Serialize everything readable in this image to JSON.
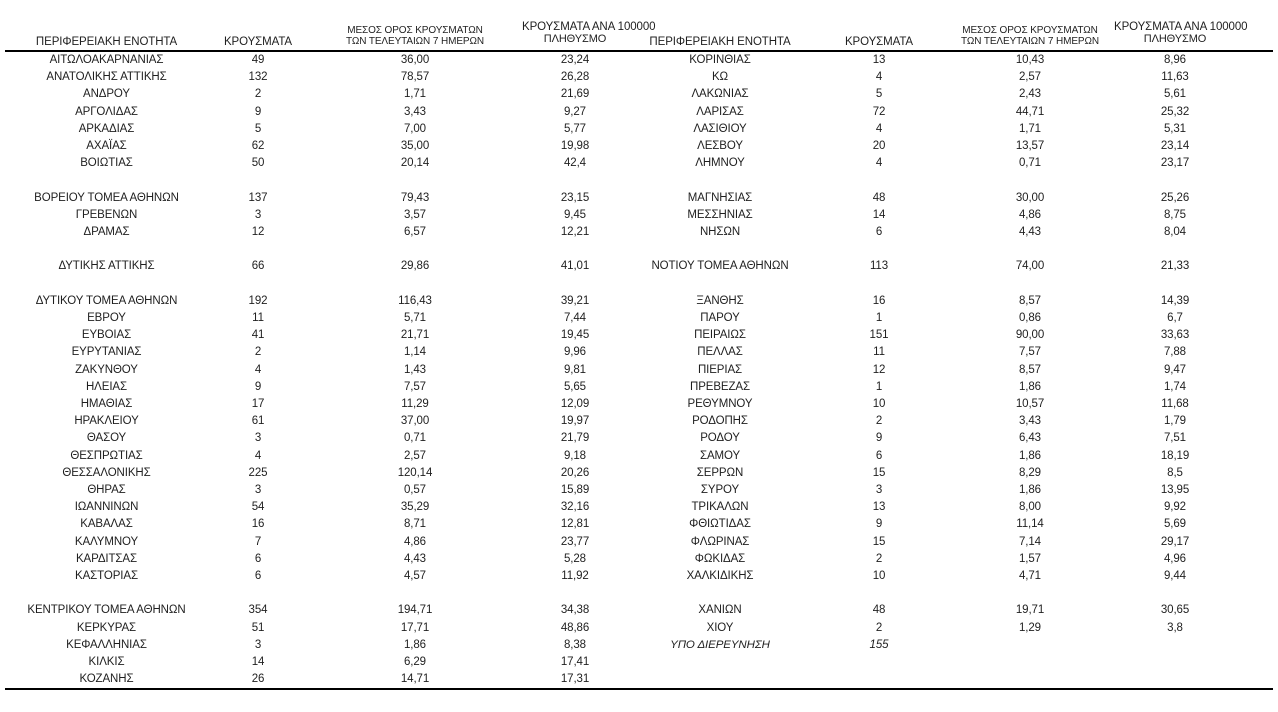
{
  "page": {
    "background": "#ffffff",
    "text_color": "#1f1f1f",
    "line_color": "#000000"
  },
  "headers": {
    "region": "ΠΕΡΙΦΕΡΕΙΑΚΗ ΕΝΟΤΗΤΑ",
    "cases": "ΚΡΟΥΣΜΑΤΑ",
    "avg7": [
      "ΜΕΣΟΣ ΟΡΟΣ ΚΡΟΥΣΜΑΤΩΝ",
      "ΤΩΝ ΤΕΛΕΥΤΑΙΩΝ 7 ΗΜΕΡΩΝ"
    ],
    "per100k": [
      "ΚΡΟΥΣΜΑΤΑ ΑΝΑ 100000",
      "ΠΛΗΘΥΣΜΟ"
    ]
  },
  "left_rows": [
    {
      "region": "ΑΙΤΩΛΟΑΚΑΡΝΑΝΙΑΣ",
      "cases": "49",
      "avg7": "36,00",
      "per100k": "23,24"
    },
    {
      "region": "ΑΝΑΤΟΛΙΚΗΣ ΑΤΤΙΚΗΣ",
      "cases": "132",
      "avg7": "78,57",
      "per100k": "26,28"
    },
    {
      "region": "ΑΝΔΡΟΥ",
      "cases": "2",
      "avg7": "1,71",
      "per100k": "21,69"
    },
    {
      "region": "ΑΡΓΟΛΙΔΑΣ",
      "cases": "9",
      "avg7": "3,43",
      "per100k": "9,27"
    },
    {
      "region": "ΑΡΚΑΔΙΑΣ",
      "cases": "5",
      "avg7": "7,00",
      "per100k": "5,77"
    },
    {
      "region": "ΑΧΑΪΑΣ",
      "cases": "62",
      "avg7": "35,00",
      "per100k": "19,98"
    },
    {
      "region": "ΒΟΙΩΤΙΑΣ",
      "cases": "50",
      "avg7": "20,14",
      "per100k": "42,4"
    },
    {
      "blank": true
    },
    {
      "region": "ΒΟΡΕΙΟΥ ΤΟΜΕΑ ΑΘΗΝΩΝ",
      "cases": "137",
      "avg7": "79,43",
      "per100k": "23,15"
    },
    {
      "region": "ΓΡΕΒΕΝΩΝ",
      "cases": "3",
      "avg7": "3,57",
      "per100k": "9,45"
    },
    {
      "region": "ΔΡΑΜΑΣ",
      "cases": "12",
      "avg7": "6,57",
      "per100k": "12,21"
    },
    {
      "blank": true
    },
    {
      "region": "ΔΥΤΙΚΗΣ ΑΤΤΙΚΗΣ",
      "cases": "66",
      "avg7": "29,86",
      "per100k": "41,01"
    },
    {
      "blank": true
    },
    {
      "region": "ΔΥΤΙΚΟΥ ΤΟΜΕΑ ΑΘΗΝΩΝ",
      "cases": "192",
      "avg7": "116,43",
      "per100k": "39,21"
    },
    {
      "region": "ΕΒΡΟΥ",
      "cases": "11",
      "avg7": "5,71",
      "per100k": "7,44"
    },
    {
      "region": "ΕΥΒΟΙΑΣ",
      "cases": "41",
      "avg7": "21,71",
      "per100k": "19,45"
    },
    {
      "region": "ΕΥΡΥΤΑΝΙΑΣ",
      "cases": "2",
      "avg7": "1,14",
      "per100k": "9,96"
    },
    {
      "region": "ΖΑΚΥΝΘΟΥ",
      "cases": "4",
      "avg7": "1,43",
      "per100k": "9,81"
    },
    {
      "region": "ΗΛΕΙΑΣ",
      "cases": "9",
      "avg7": "7,57",
      "per100k": "5,65"
    },
    {
      "region": "ΗΜΑΘΙΑΣ",
      "cases": "17",
      "avg7": "11,29",
      "per100k": "12,09"
    },
    {
      "region": "ΗΡΑΚΛΕΙΟΥ",
      "cases": "61",
      "avg7": "37,00",
      "per100k": "19,97"
    },
    {
      "region": "ΘΑΣΟΥ",
      "cases": "3",
      "avg7": "0,71",
      "per100k": "21,79"
    },
    {
      "region": "ΘΕΣΠΡΩΤΙΑΣ",
      "cases": "4",
      "avg7": "2,57",
      "per100k": "9,18"
    },
    {
      "region": "ΘΕΣΣΑΛΟΝΙΚΗΣ",
      "cases": "225",
      "avg7": "120,14",
      "per100k": "20,26"
    },
    {
      "region": "ΘΗΡΑΣ",
      "cases": "3",
      "avg7": "0,57",
      "per100k": "15,89"
    },
    {
      "region": "ΙΩΑΝΝΙΝΩΝ",
      "cases": "54",
      "avg7": "35,29",
      "per100k": "32,16"
    },
    {
      "region": "ΚΑΒΑΛΑΣ",
      "cases": "16",
      "avg7": "8,71",
      "per100k": "12,81"
    },
    {
      "region": "ΚΑΛΥΜΝΟΥ",
      "cases": "7",
      "avg7": "4,86",
      "per100k": "23,77"
    },
    {
      "region": "ΚΑΡΔΙΤΣΑΣ",
      "cases": "6",
      "avg7": "4,43",
      "per100k": "5,28"
    },
    {
      "region": "ΚΑΣΤΟΡΙΑΣ",
      "cases": "6",
      "avg7": "4,57",
      "per100k": "11,92"
    },
    {
      "blank": true
    },
    {
      "region": "ΚΕΝΤΡΙΚΟΥ ΤΟΜΕΑ ΑΘΗΝΩΝ",
      "cases": "354",
      "avg7": "194,71",
      "per100k": "34,38"
    },
    {
      "region": "ΚΕΡΚΥΡΑΣ",
      "cases": "51",
      "avg7": "17,71",
      "per100k": "48,86"
    },
    {
      "region": "ΚΕΦΑΛΛΗΝΙΑΣ",
      "cases": "3",
      "avg7": "1,86",
      "per100k": "8,38"
    },
    {
      "region": "ΚΙΛΚΙΣ",
      "cases": "14",
      "avg7": "6,29",
      "per100k": "17,41"
    },
    {
      "region": "ΚΟΖΑΝΗΣ",
      "cases": "26",
      "avg7": "14,71",
      "per100k": "17,31"
    }
  ],
  "right_rows": [
    {
      "region": "ΚΟΡΙΝΘΙΑΣ",
      "cases": "13",
      "avg7": "10,43",
      "per100k": "8,96"
    },
    {
      "region": "ΚΩ",
      "cases": "4",
      "avg7": "2,57",
      "per100k": "11,63"
    },
    {
      "region": "ΛΑΚΩΝΙΑΣ",
      "cases": "5",
      "avg7": "2,43",
      "per100k": "5,61"
    },
    {
      "region": "ΛΑΡΙΣΑΣ",
      "cases": "72",
      "avg7": "44,71",
      "per100k": "25,32"
    },
    {
      "region": "ΛΑΣΙΘΙΟΥ",
      "cases": "4",
      "avg7": "1,71",
      "per100k": "5,31"
    },
    {
      "region": "ΛΕΣΒΟΥ",
      "cases": "20",
      "avg7": "13,57",
      "per100k": "23,14"
    },
    {
      "region": "ΛΗΜΝΟΥ",
      "cases": "4",
      "avg7": "0,71",
      "per100k": "23,17"
    },
    {
      "blank": true
    },
    {
      "region": "ΜΑΓΝΗΣΙΑΣ",
      "cases": "48",
      "avg7": "30,00",
      "per100k": "25,26"
    },
    {
      "region": "ΜΕΣΣΗΝΙΑΣ",
      "cases": "14",
      "avg7": "4,86",
      "per100k": "8,75"
    },
    {
      "region": "ΝΗΣΩΝ",
      "cases": "6",
      "avg7": "4,43",
      "per100k": "8,04"
    },
    {
      "blank": true
    },
    {
      "region": "ΝΟΤΙΟΥ ΤΟΜΕΑ ΑΘΗΝΩΝ",
      "cases": "113",
      "avg7": "74,00",
      "per100k": "21,33"
    },
    {
      "blank": true
    },
    {
      "region": "ΞΑΝΘΗΣ",
      "cases": "16",
      "avg7": "8,57",
      "per100k": "14,39"
    },
    {
      "region": "ΠΑΡΟΥ",
      "cases": "1",
      "avg7": "0,86",
      "per100k": "6,7"
    },
    {
      "region": "ΠΕΙΡΑΙΩΣ",
      "cases": "151",
      "avg7": "90,00",
      "per100k": "33,63"
    },
    {
      "region": "ΠΕΛΛΑΣ",
      "cases": "11",
      "avg7": "7,57",
      "per100k": "7,88"
    },
    {
      "region": "ΠΙΕΡΙΑΣ",
      "cases": "12",
      "avg7": "8,57",
      "per100k": "9,47"
    },
    {
      "region": "ΠΡΕΒΕΖΑΣ",
      "cases": "1",
      "avg7": "1,86",
      "per100k": "1,74"
    },
    {
      "region": "ΡΕΘΥΜΝΟΥ",
      "cases": "10",
      "avg7": "10,57",
      "per100k": "11,68"
    },
    {
      "region": "ΡΟΔΟΠΗΣ",
      "cases": "2",
      "avg7": "3,43",
      "per100k": "1,79"
    },
    {
      "region": "ΡΟΔΟΥ",
      "cases": "9",
      "avg7": "6,43",
      "per100k": "7,51"
    },
    {
      "region": "ΣΑΜΟΥ",
      "cases": "6",
      "avg7": "1,86",
      "per100k": "18,19"
    },
    {
      "region": "ΣΕΡΡΩΝ",
      "cases": "15",
      "avg7": "8,29",
      "per100k": "8,5"
    },
    {
      "region": "ΣΥΡΟΥ",
      "cases": "3",
      "avg7": "1,86",
      "per100k": "13,95"
    },
    {
      "region": "ΤΡΙΚΑΛΩΝ",
      "cases": "13",
      "avg7": "8,00",
      "per100k": "9,92"
    },
    {
      "region": "ΦΘΙΩΤΙΔΑΣ",
      "cases": "9",
      "avg7": "11,14",
      "per100k": "5,69"
    },
    {
      "region": "ΦΛΩΡΙΝΑΣ",
      "cases": "15",
      "avg7": "7,14",
      "per100k": "29,17"
    },
    {
      "region": "ΦΩΚΙΔΑΣ",
      "cases": "2",
      "avg7": "1,57",
      "per100k": "4,96"
    },
    {
      "region": "ΧΑΛΚΙΔΙΚΗΣ",
      "cases": "10",
      "avg7": "4,71",
      "per100k": "9,44"
    },
    {
      "blank": true
    },
    {
      "region": "ΧΑΝΙΩΝ",
      "cases": "48",
      "avg7": "19,71",
      "per100k": "30,65"
    },
    {
      "region": "ΧΙΟΥ",
      "cases": "2",
      "avg7": "1,29",
      "per100k": "3,8"
    },
    {
      "region": "ΥΠΟ ΔΙΕΡΕΥΝΗΣΗ",
      "cases": "155",
      "avg7": "",
      "per100k": "",
      "italic": true
    },
    {
      "blank": true
    },
    {
      "blank": true
    }
  ]
}
